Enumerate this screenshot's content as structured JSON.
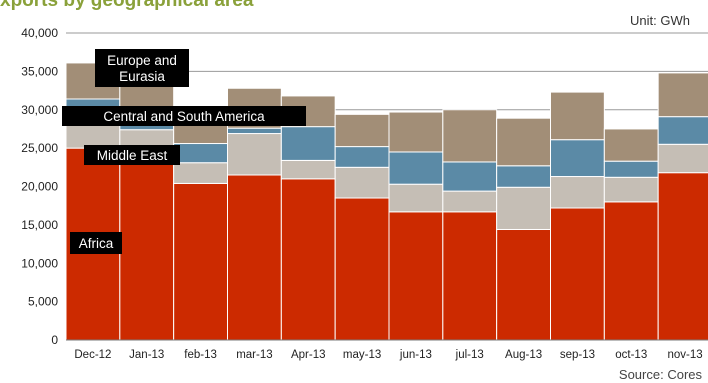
{
  "title": "xports by geographical area",
  "unit": "Unit: GWh",
  "source": "Source: Cores",
  "colors": {
    "Africa": "#cc2a00",
    "Middle East": "#c5beb5",
    "Central and South America": "#5b8aa6",
    "Europe and Eurasia": "#a28e77"
  },
  "chart_data": {
    "type": "bar",
    "stacked": true,
    "title": "xports by geographical area",
    "unit": "Unit: GWh",
    "ylim": [
      0,
      40000
    ],
    "yticks": [
      "0",
      "5,000",
      "10,000",
      "15,000",
      "20,000",
      "25,000",
      "30,000",
      "35,000",
      "40,000"
    ],
    "categories": [
      "Dec-12",
      "Jan-13",
      "feb-13",
      "mar-13",
      "Apr-13",
      "may-13",
      "jun-13",
      "jul-13",
      "Aug-13",
      "sep-13",
      "oct-13",
      "nov-13"
    ],
    "series": [
      {
        "name": "Africa",
        "values": [
          25000,
          22900,
          20400,
          21500,
          21000,
          18500,
          16700,
          16700,
          14400,
          17200,
          18000,
          21800
        ]
      },
      {
        "name": "Middle East",
        "values": [
          4400,
          4500,
          2700,
          5400,
          2400,
          4000,
          3600,
          2700,
          5500,
          4100,
          3200,
          3700
        ]
      },
      {
        "name": "Central and South America",
        "values": [
          2000,
          2700,
          2500,
          700,
          4400,
          2700,
          4200,
          3800,
          2800,
          4800,
          2100,
          3600
        ]
      },
      {
        "name": "Europe and Eurasia",
        "values": [
          4700,
          4000,
          3800,
          5200,
          4000,
          4200,
          5200,
          6800,
          6200,
          6200,
          4200,
          5700
        ]
      }
    ],
    "annotations": [
      {
        "text_lines": [
          "Europe and",
          "Eurasia"
        ],
        "series": "Europe and Eurasia"
      },
      {
        "text_lines": [
          "Central and South America"
        ],
        "series": "Central and South America"
      },
      {
        "text_lines": [
          "Middle East"
        ],
        "series": "Middle East"
      },
      {
        "text_lines": [
          "Africa"
        ],
        "series": "Africa"
      }
    ],
    "grid": true,
    "legend": "inline labels"
  }
}
